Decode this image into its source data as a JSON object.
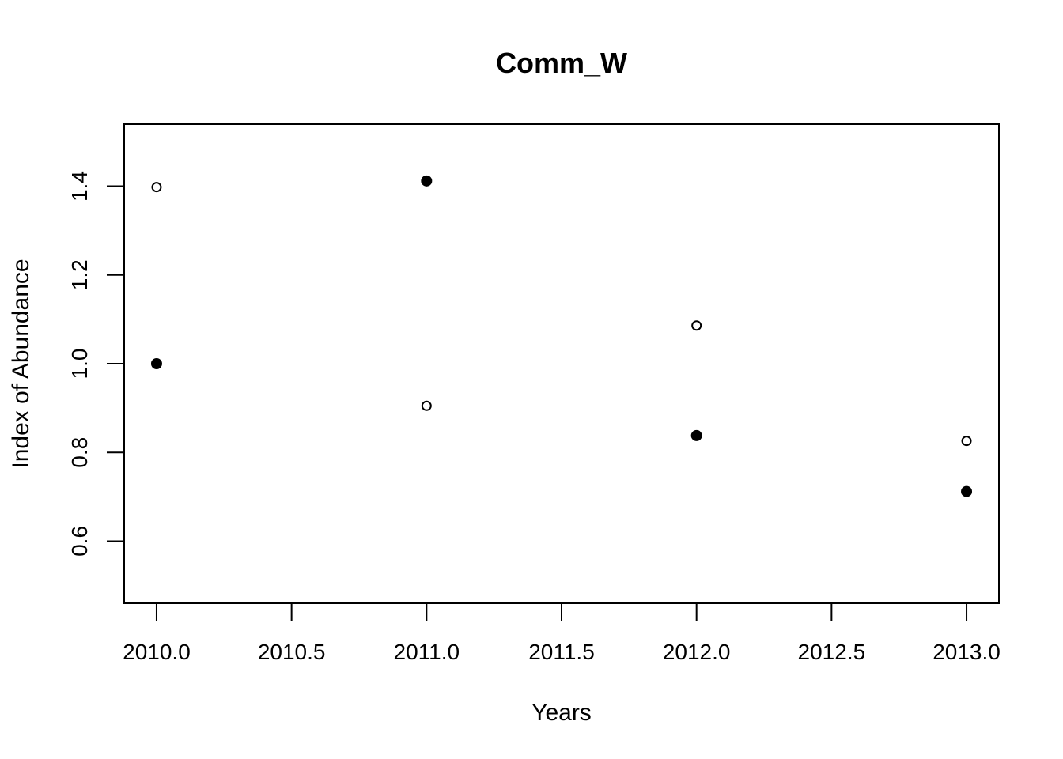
{
  "chart_data": {
    "type": "scatter",
    "title": "Comm_W",
    "xlabel": "Years",
    "ylabel": "Index of Abundance",
    "xlim": [
      2009.88,
      2013.12
    ],
    "ylim": [
      0.46,
      1.54
    ],
    "x_ticks": [
      "2010.0",
      "2010.5",
      "2011.0",
      "2011.5",
      "2012.0",
      "2012.5",
      "2013.0"
    ],
    "y_ticks": [
      "0.6",
      "0.8",
      "1.0",
      "1.2",
      "1.4"
    ],
    "grid": false,
    "legend": "none",
    "series": [
      {
        "marker": "filled-circle",
        "color": "#000000",
        "x": [
          2010,
          2011,
          2012,
          2013
        ],
        "y": [
          1.0,
          1.412,
          0.838,
          0.712
        ]
      },
      {
        "marker": "open-circle",
        "color": "#000000",
        "x": [
          2010,
          2011,
          2012,
          2013
        ],
        "y": [
          1.398,
          0.905,
          1.086,
          0.826
        ]
      }
    ]
  }
}
